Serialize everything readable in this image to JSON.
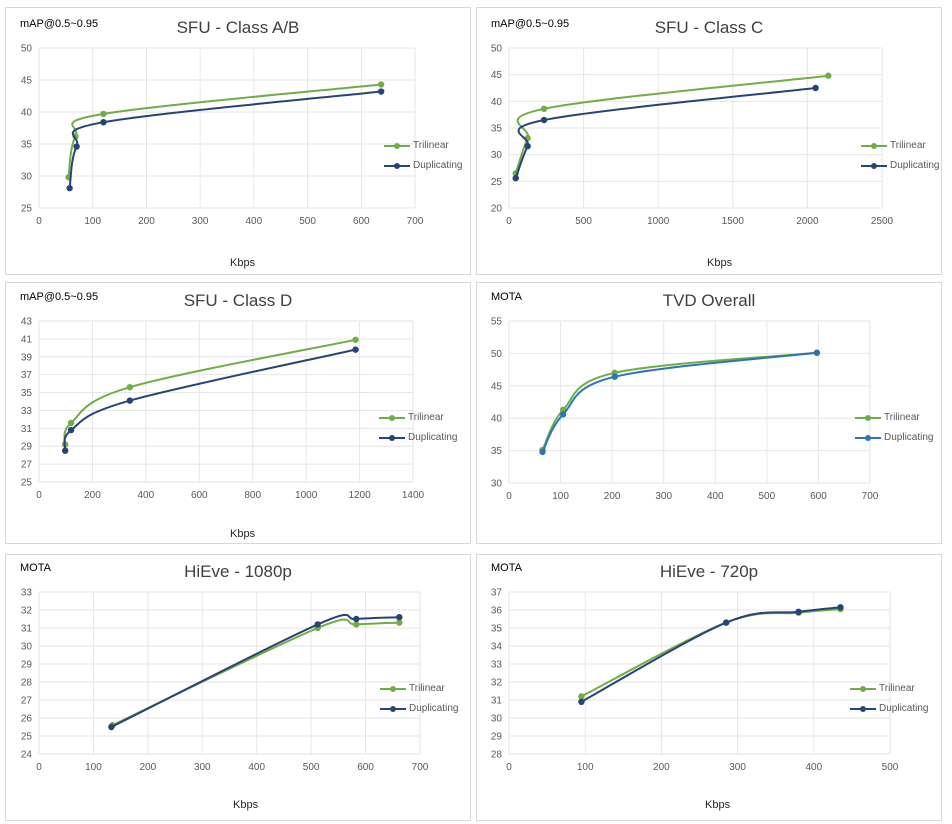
{
  "chart_data": [
    {
      "type": "line",
      "title": "SFU - Class A/B",
      "ylabel": "mAP@0.5~0.95",
      "xlabel": "Kbps",
      "xlim": [
        0,
        700
      ],
      "xticks": [
        0,
        100,
        200,
        300,
        400,
        500,
        600,
        700
      ],
      "ylim": [
        25,
        50
      ],
      "yticks": [
        25,
        30,
        35,
        40,
        45,
        50
      ],
      "grid": true,
      "legend": "right",
      "series": [
        {
          "name": "Trilinear",
          "color": "#70ad47",
          "x": [
            55,
            68,
            120,
            637
          ],
          "y": [
            29.8,
            36.2,
            39.7,
            44.3
          ]
        },
        {
          "name": "Duplicating",
          "color": "#264478",
          "x": [
            57,
            70,
            120,
            637
          ],
          "y": [
            28.1,
            34.6,
            38.4,
            43.2
          ]
        }
      ]
    },
    {
      "type": "line",
      "title": "SFU - Class C",
      "ylabel": "mAP@0.5~0.95",
      "xlabel": "Kbps",
      "xlim": [
        0,
        2500
      ],
      "xticks": [
        0,
        500,
        1000,
        1500,
        2000,
        2500
      ],
      "ylim": [
        20,
        50
      ],
      "yticks": [
        20,
        25,
        30,
        35,
        40,
        45,
        50
      ],
      "grid": true,
      "legend": "right",
      "series": [
        {
          "name": "Trilinear",
          "color": "#70ad47",
          "x": [
            45,
            125,
            235,
            2140
          ],
          "y": [
            26.5,
            33.1,
            38.6,
            44.8
          ]
        },
        {
          "name": "Duplicating",
          "color": "#264478",
          "x": [
            45,
            125,
            235,
            2055
          ],
          "y": [
            25.6,
            31.6,
            36.5,
            42.5
          ]
        }
      ]
    },
    {
      "type": "line",
      "title": "SFU - Class D",
      "ylabel": "mAP@0.5~0.95",
      "xlabel": "Kbps",
      "xlim": [
        0,
        1400
      ],
      "xticks": [
        0,
        200,
        400,
        600,
        800,
        1000,
        1200,
        1400
      ],
      "ylim": [
        25,
        43
      ],
      "yticks": [
        25,
        27,
        29,
        31,
        33,
        35,
        37,
        39,
        41,
        43
      ],
      "grid": true,
      "legend": "right",
      "series": [
        {
          "name": "Trilinear",
          "color": "#70ad47",
          "x": [
            98,
            120,
            340,
            1185
          ],
          "y": [
            29.2,
            31.6,
            35.6,
            40.9
          ]
        },
        {
          "name": "Duplicating",
          "color": "#264478",
          "x": [
            98,
            120,
            340,
            1185
          ],
          "y": [
            28.5,
            30.8,
            34.1,
            39.8
          ]
        }
      ]
    },
    {
      "type": "line",
      "title": "TVD Overall",
      "ylabel": "MOTA",
      "xlabel": "",
      "xlim": [
        0,
        700
      ],
      "xticks": [
        0,
        100,
        200,
        300,
        400,
        500,
        600,
        700
      ],
      "ylim": [
        30,
        55
      ],
      "yticks": [
        30,
        35,
        40,
        45,
        50,
        55
      ],
      "grid": true,
      "legend": "right",
      "series": [
        {
          "name": "Trilinear",
          "color": "#70ad47",
          "x": [
            65,
            105,
            205,
            597
          ],
          "y": [
            35.1,
            41.3,
            47.0,
            50.1
          ]
        },
        {
          "name": "Duplicating",
          "color": "#2e75b6",
          "x": [
            65,
            105,
            205,
            597
          ],
          "y": [
            34.8,
            40.6,
            46.4,
            50.1
          ]
        }
      ]
    },
    {
      "type": "line",
      "title": "HiEve - 1080p",
      "ylabel": "MOTA",
      "xlabel": "Kbps",
      "xlim": [
        0,
        700
      ],
      "xticks": [
        0,
        100,
        200,
        300,
        400,
        500,
        600,
        700
      ],
      "ylim": [
        24,
        33
      ],
      "yticks": [
        24,
        25,
        26,
        27,
        28,
        29,
        30,
        31,
        32,
        33
      ],
      "grid": true,
      "legend": "right",
      "series": [
        {
          "name": "Trilinear",
          "color": "#70ad47",
          "x": [
            135,
            512,
            583,
            662
          ],
          "y": [
            25.6,
            31.0,
            31.2,
            31.3
          ]
        },
        {
          "name": "Duplicating",
          "color": "#264478",
          "x": [
            133,
            512,
            583,
            662
          ],
          "y": [
            25.5,
            31.2,
            31.5,
            31.6
          ]
        }
      ]
    },
    {
      "type": "line",
      "title": "HiEve - 720p",
      "ylabel": "MOTA",
      "xlabel": "Kbps",
      "xlim": [
        0,
        500
      ],
      "xticks": [
        0,
        100,
        200,
        300,
        400,
        500
      ],
      "ylim": [
        28,
        37
      ],
      "yticks": [
        28,
        29,
        30,
        31,
        32,
        33,
        34,
        35,
        36,
        37
      ],
      "grid": true,
      "legend": "right",
      "series": [
        {
          "name": "Trilinear",
          "color": "#70ad47",
          "x": [
            95,
            285,
            380,
            435
          ],
          "y": [
            31.2,
            35.3,
            35.85,
            36.05
          ]
        },
        {
          "name": "Duplicating",
          "color": "#264478",
          "x": [
            95,
            285,
            380,
            435
          ],
          "y": [
            30.9,
            35.3,
            35.9,
            36.15
          ]
        }
      ]
    }
  ]
}
